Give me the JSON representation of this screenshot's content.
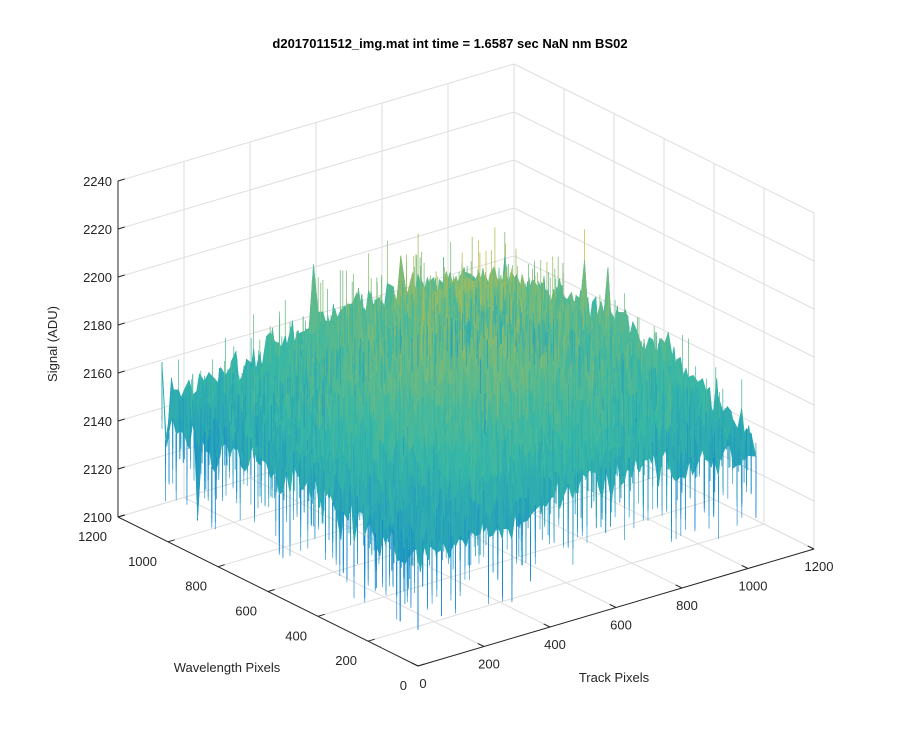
{
  "chart_data": {
    "type": "surface",
    "title": "d2017011512_img.mat int time = 1.6587 sec  NaN nm BS02",
    "xlabel": "Track Pixels",
    "ylabel": "Wavelength Pixels",
    "zlabel": "Signal (ADU)",
    "xlim": [
      0,
      1200
    ],
    "ylim": [
      0,
      1200
    ],
    "zlim": [
      2100,
      2240
    ],
    "xticks": [
      "0",
      "200",
      "400",
      "600",
      "800",
      "1000",
      "1200"
    ],
    "yticks": [
      "0",
      "200",
      "400",
      "600",
      "800",
      "1000",
      "1200"
    ],
    "zticks": [
      "2100",
      "2120",
      "2140",
      "2160",
      "2180",
      "2200",
      "2220",
      "2240"
    ],
    "x_extent": [
      0,
      1024
    ],
    "y_extent": [
      0,
      1024
    ],
    "z_mean_range": [
      2140,
      2200
    ],
    "z_min_approx": 2115,
    "z_max_approx": 2232,
    "colormap": "parula",
    "color_low": "#0d7ed8",
    "color_mid": "#37b8a6",
    "color_high": "#e6bf30",
    "grid": true
  }
}
